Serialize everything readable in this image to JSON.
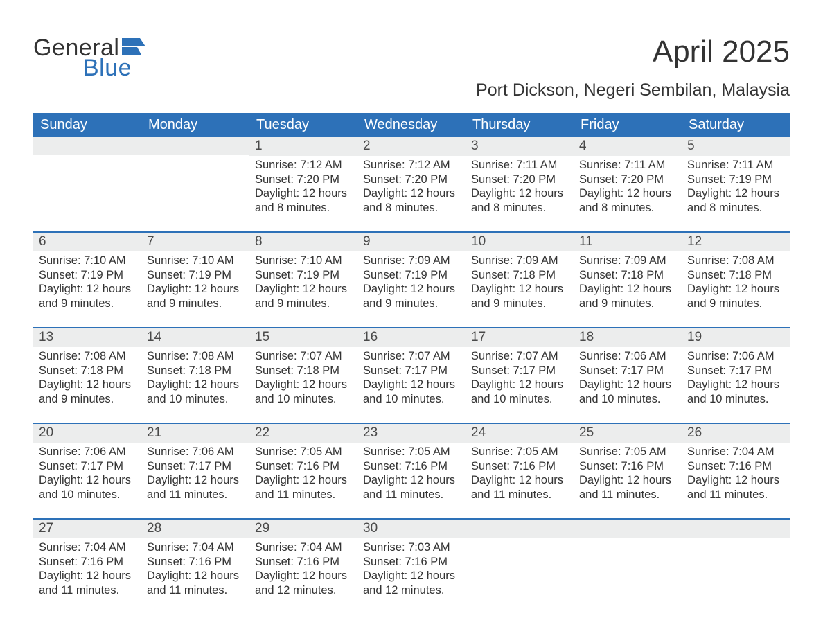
{
  "colors": {
    "brand_blue": "#2d71b8",
    "header_bg": "#2d71b8",
    "header_text": "#ffffff",
    "daynum_bg": "#eceded",
    "text": "#333333",
    "week_border": "#2d71b8",
    "background": "#ffffff"
  },
  "typography": {
    "font_family": "Arial, Helvetica, sans-serif",
    "month_title_size_pt": 33,
    "location_size_pt": 19,
    "header_cell_size_pt": 15,
    "daynum_size_pt": 14,
    "body_size_pt": 12
  },
  "logo": {
    "line1": "General",
    "line2": "Blue"
  },
  "title": "April 2025",
  "location": "Port Dickson, Negeri Sembilan, Malaysia",
  "day_headers": [
    "Sunday",
    "Monday",
    "Tuesday",
    "Wednesday",
    "Thursday",
    "Friday",
    "Saturday"
  ],
  "labels": {
    "sunrise": "Sunrise:",
    "sunset": "Sunset:",
    "daylight": "Daylight:"
  },
  "weeks": [
    [
      null,
      null,
      {
        "n": "1",
        "sr": "7:12 AM",
        "ss": "7:20 PM",
        "dl": "12 hours and 8 minutes."
      },
      {
        "n": "2",
        "sr": "7:12 AM",
        "ss": "7:20 PM",
        "dl": "12 hours and 8 minutes."
      },
      {
        "n": "3",
        "sr": "7:11 AM",
        "ss": "7:20 PM",
        "dl": "12 hours and 8 minutes."
      },
      {
        "n": "4",
        "sr": "7:11 AM",
        "ss": "7:20 PM",
        "dl": "12 hours and 8 minutes."
      },
      {
        "n": "5",
        "sr": "7:11 AM",
        "ss": "7:19 PM",
        "dl": "12 hours and 8 minutes."
      }
    ],
    [
      {
        "n": "6",
        "sr": "7:10 AM",
        "ss": "7:19 PM",
        "dl": "12 hours and 9 minutes."
      },
      {
        "n": "7",
        "sr": "7:10 AM",
        "ss": "7:19 PM",
        "dl": "12 hours and 9 minutes."
      },
      {
        "n": "8",
        "sr": "7:10 AM",
        "ss": "7:19 PM",
        "dl": "12 hours and 9 minutes."
      },
      {
        "n": "9",
        "sr": "7:09 AM",
        "ss": "7:19 PM",
        "dl": "12 hours and 9 minutes."
      },
      {
        "n": "10",
        "sr": "7:09 AM",
        "ss": "7:18 PM",
        "dl": "12 hours and 9 minutes."
      },
      {
        "n": "11",
        "sr": "7:09 AM",
        "ss": "7:18 PM",
        "dl": "12 hours and 9 minutes."
      },
      {
        "n": "12",
        "sr": "7:08 AM",
        "ss": "7:18 PM",
        "dl": "12 hours and 9 minutes."
      }
    ],
    [
      {
        "n": "13",
        "sr": "7:08 AM",
        "ss": "7:18 PM",
        "dl": "12 hours and 9 minutes."
      },
      {
        "n": "14",
        "sr": "7:08 AM",
        "ss": "7:18 PM",
        "dl": "12 hours and 10 minutes."
      },
      {
        "n": "15",
        "sr": "7:07 AM",
        "ss": "7:18 PM",
        "dl": "12 hours and 10 minutes."
      },
      {
        "n": "16",
        "sr": "7:07 AM",
        "ss": "7:17 PM",
        "dl": "12 hours and 10 minutes."
      },
      {
        "n": "17",
        "sr": "7:07 AM",
        "ss": "7:17 PM",
        "dl": "12 hours and 10 minutes."
      },
      {
        "n": "18",
        "sr": "7:06 AM",
        "ss": "7:17 PM",
        "dl": "12 hours and 10 minutes."
      },
      {
        "n": "19",
        "sr": "7:06 AM",
        "ss": "7:17 PM",
        "dl": "12 hours and 10 minutes."
      }
    ],
    [
      {
        "n": "20",
        "sr": "7:06 AM",
        "ss": "7:17 PM",
        "dl": "12 hours and 10 minutes."
      },
      {
        "n": "21",
        "sr": "7:06 AM",
        "ss": "7:17 PM",
        "dl": "12 hours and 11 minutes."
      },
      {
        "n": "22",
        "sr": "7:05 AM",
        "ss": "7:16 PM",
        "dl": "12 hours and 11 minutes."
      },
      {
        "n": "23",
        "sr": "7:05 AM",
        "ss": "7:16 PM",
        "dl": "12 hours and 11 minutes."
      },
      {
        "n": "24",
        "sr": "7:05 AM",
        "ss": "7:16 PM",
        "dl": "12 hours and 11 minutes."
      },
      {
        "n": "25",
        "sr": "7:05 AM",
        "ss": "7:16 PM",
        "dl": "12 hours and 11 minutes."
      },
      {
        "n": "26",
        "sr": "7:04 AM",
        "ss": "7:16 PM",
        "dl": "12 hours and 11 minutes."
      }
    ],
    [
      {
        "n": "27",
        "sr": "7:04 AM",
        "ss": "7:16 PM",
        "dl": "12 hours and 11 minutes."
      },
      {
        "n": "28",
        "sr": "7:04 AM",
        "ss": "7:16 PM",
        "dl": "12 hours and 11 minutes."
      },
      {
        "n": "29",
        "sr": "7:04 AM",
        "ss": "7:16 PM",
        "dl": "12 hours and 12 minutes."
      },
      {
        "n": "30",
        "sr": "7:03 AM",
        "ss": "7:16 PM",
        "dl": "12 hours and 12 minutes."
      },
      null,
      null,
      null
    ]
  ]
}
